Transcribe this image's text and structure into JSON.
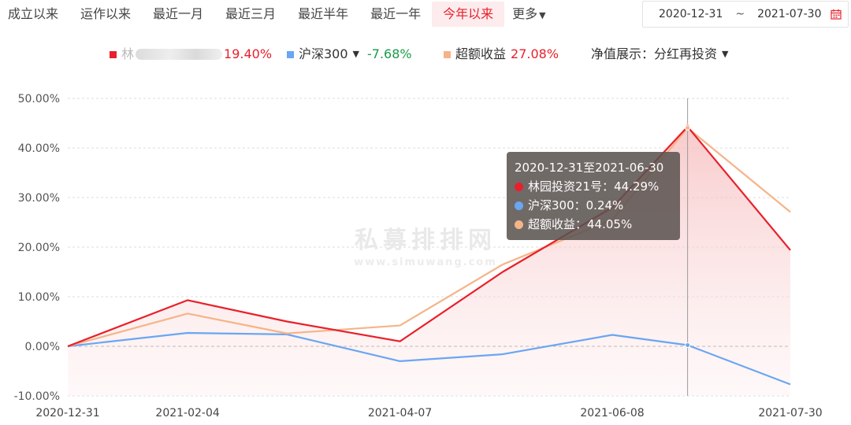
{
  "tabs": [
    {
      "label": "成立以来",
      "active": false
    },
    {
      "label": "运作以来",
      "active": false
    },
    {
      "label": "最近一月",
      "active": false
    },
    {
      "label": "最近三月",
      "active": false
    },
    {
      "label": "最近半年",
      "active": false
    },
    {
      "label": "最近一年",
      "active": false
    },
    {
      "label": "今年以来",
      "active": true
    }
  ],
  "more_label": "更多",
  "date_range": {
    "start": "2020-12-31",
    "separator": "~",
    "end": "2021-07-30",
    "icon": "calendar-icon"
  },
  "legend": {
    "fund": {
      "prefix": "林",
      "value": "19.40%",
      "color": "#e8202b"
    },
    "index": {
      "name": "沪深300",
      "value": "-7.68%",
      "color": "#6aa6f2"
    },
    "excess": {
      "name": "超额收益",
      "value": "27.08%",
      "color": "#f5b488"
    },
    "display_mode": "净值展示：分红再投资"
  },
  "tooltip": {
    "title": "2020-12-31至2021-06-30",
    "rows": [
      {
        "text": "林园投资21号：44.29%",
        "color": "#e8202b"
      },
      {
        "text": "沪深300：0.24%",
        "color": "#6aa6f2"
      },
      {
        "text": "超额收益：44.05%",
        "color": "#f5b488"
      }
    ]
  },
  "watermark": {
    "main": "私募排排网",
    "sub": "www.simuwang.com"
  },
  "chart_data": {
    "type": "line",
    "x": [
      "2020-12-31",
      "2021-02-04",
      "2021-03-05",
      "2021-04-07",
      "2021-05-07",
      "2021-06-08",
      "2021-06-30",
      "2021-07-30"
    ],
    "x_tick_labels": [
      "2020-12-31",
      "2021-02-04",
      "2021-04-07",
      "2021-06-08",
      "2021-07-30"
    ],
    "y_tick_labels": [
      "50.00%",
      "40.00%",
      "30.00%",
      "20.00%",
      "10.00%",
      "0.00%",
      "-10.00%"
    ],
    "ylim": [
      -10,
      50
    ],
    "series": [
      {
        "name": "林园投资21号",
        "color": "#e8202b",
        "values": [
          0,
          9.3,
          5.0,
          1.0,
          15.0,
          28.0,
          44.29,
          19.4
        ],
        "area": true
      },
      {
        "name": "沪深300",
        "color": "#6aa6f2",
        "values": [
          0,
          2.7,
          2.4,
          -3.0,
          -1.6,
          2.3,
          0.24,
          -7.68
        ]
      },
      {
        "name": "超额收益",
        "color": "#f5b488",
        "values": [
          0,
          6.6,
          2.6,
          4.2,
          16.5,
          25.5,
          44.05,
          27.08
        ]
      }
    ],
    "crosshair_x": "2021-06-30",
    "grid": true
  }
}
